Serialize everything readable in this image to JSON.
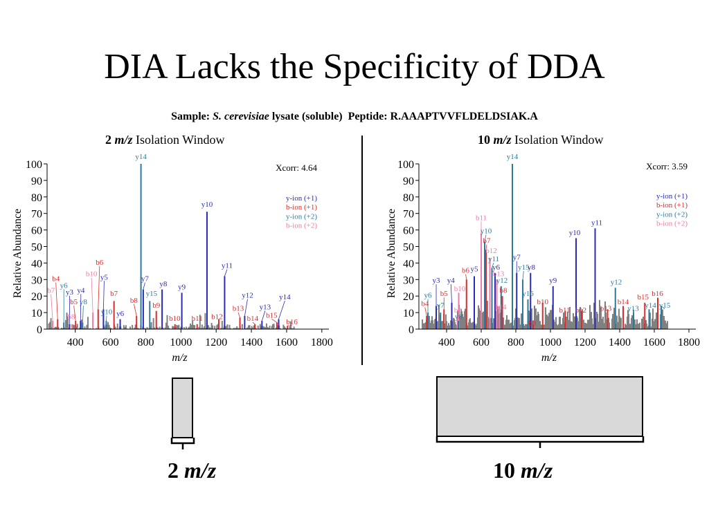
{
  "slide": {
    "title": "DIA Lacks the Specificity of DDA",
    "sample_label": "Sample:",
    "sample_species": "S. cerevisiae",
    "sample_rest": "lysate (soluble)",
    "peptide_label": "Peptide:",
    "peptide_seq": "R.AAAPTVVFLDELDSIAK.A"
  },
  "windows": [
    {
      "number": "2",
      "unit": "m/z",
      "suffix": "Isolation Window",
      "label_number": "2",
      "label_unit": "m/z"
    },
    {
      "number": "10",
      "unit": "m/z",
      "suffix": "Isolation Window",
      "label_number": "10",
      "label_unit": "m/z"
    }
  ],
  "colors": {
    "y1": "#2a2ab8",
    "b1": "#e02a2a",
    "y2": "#2a7aa0",
    "b2": "#ee7aa8",
    "noise": "#808080",
    "box_fill": "#d9d9d9"
  },
  "legend": [
    "y-ion (+1)",
    "b-ion (+1)",
    "y-ion (+2)",
    "b-ion (+2)"
  ],
  "chart_data": [
    {
      "type": "bar",
      "title": "2 m/z Isolation Window",
      "xlabel": "m/z",
      "ylabel": "Relative Abundance",
      "xlim": [
        240,
        1840
      ],
      "ylim": [
        0,
        100
      ],
      "xticks": [
        400,
        600,
        800,
        1000,
        1200,
        1400,
        1600,
        1800
      ],
      "yticks": [
        0,
        10,
        20,
        30,
        40,
        50,
        60,
        70,
        80,
        90,
        100
      ],
      "annotation": "Xcorr: 4.64",
      "legend_entries": [
        "y-ion (+1)",
        "b-ion (+1)",
        "y-ion (+2)",
        "b-ion (+2)"
      ],
      "peaks": [
        {
          "label": "y14",
          "ion": "y2",
          "mz": 773,
          "height": 100,
          "lx": 773,
          "ly": 103
        },
        {
          "label": "y10",
          "ion": "y1",
          "mz": 1148,
          "height": 71,
          "lx": 1148,
          "ly": 74
        },
        {
          "label": "y11",
          "ion": "y1",
          "mz": 1248,
          "height": 32,
          "lx": 1262,
          "ly": 37
        },
        {
          "label": "b4",
          "ion": "b1",
          "mz": 300,
          "height": 6,
          "lx": 290,
          "ly": 29
        },
        {
          "label": "b7",
          "ion": "b2",
          "mz": 272,
          "height": 5,
          "lx": 262,
          "ly": 22
        },
        {
          "label": "y6",
          "ion": "y2",
          "mz": 335,
          "height": 4,
          "lx": 335,
          "ly": 25
        },
        {
          "label": "y3",
          "ion": "y1",
          "mz": 368,
          "height": 3,
          "lx": 368,
          "ly": 21
        },
        {
          "label": "b5",
          "ion": "b1",
          "mz": 402,
          "height": 5,
          "lx": 392,
          "ly": 15
        },
        {
          "label": "y4",
          "ion": "y1",
          "mz": 430,
          "height": 5,
          "lx": 432,
          "ly": 22
        },
        {
          "label": "y8",
          "ion": "y2",
          "mz": 442,
          "height": 4,
          "lx": 446,
          "ly": 15
        },
        {
          "label": "b8",
          "ion": "b2",
          "mz": 382,
          "height": 3,
          "lx": 377,
          "ly": 6
        },
        {
          "label": "b10",
          "ion": "b2",
          "mz": 500,
          "height": 10,
          "lx": 492,
          "ly": 32
        },
        {
          "label": "b6",
          "ion": "b1",
          "mz": 530,
          "height": 12,
          "lx": 538,
          "ly": 39
        },
        {
          "label": "y5",
          "ion": "y1",
          "mz": 560,
          "height": 12,
          "lx": 564,
          "ly": 30
        },
        {
          "label": "y10",
          "ion": "y2",
          "mz": 576,
          "height": 5,
          "lx": 578,
          "ly": 9
        },
        {
          "label": "b7",
          "ion": "b1",
          "mz": 620,
          "height": 17,
          "lx": 620,
          "ly": 20
        },
        {
          "label": "y6",
          "ion": "y1",
          "mz": 655,
          "height": 6,
          "lx": 655,
          "ly": 8
        },
        {
          "label": "b8",
          "ion": "b1",
          "mz": 748,
          "height": 8,
          "lx": 733,
          "ly": 16
        },
        {
          "label": "y7",
          "ion": "y1",
          "mz": 786,
          "height": 24,
          "lx": 796,
          "ly": 29
        },
        {
          "label": "y15",
          "ion": "y2",
          "mz": 823,
          "height": 17,
          "lx": 833,
          "ly": 20
        },
        {
          "label": "b9",
          "ion": "b1",
          "mz": 860,
          "height": 11,
          "lx": 860,
          "ly": 13
        },
        {
          "label": "y8",
          "ion": "y1",
          "mz": 893,
          "height": 24,
          "lx": 900,
          "ly": 26
        },
        {
          "label": "y9",
          "ion": "y1",
          "mz": 1005,
          "height": 22,
          "lx": 1005,
          "ly": 24
        },
        {
          "label": "b10",
          "ion": "b1",
          "mz": 966,
          "height": 3,
          "lx": 965,
          "ly": 5
        },
        {
          "label": "b11",
          "ion": "b1",
          "mz": 1092,
          "height": 3,
          "lx": 1092,
          "ly": 5
        },
        {
          "label": "b12",
          "ion": "b1",
          "mz": 1215,
          "height": 6,
          "lx": 1205,
          "ly": 6
        },
        {
          "label": "b13",
          "ion": "b1",
          "mz": 1335,
          "height": 7,
          "lx": 1325,
          "ly": 11
        },
        {
          "label": "y12",
          "ion": "y1",
          "mz": 1362,
          "height": 8,
          "lx": 1378,
          "ly": 19
        },
        {
          "label": "b14",
          "ion": "b1",
          "mz": 1420,
          "height": 3,
          "lx": 1407,
          "ly": 5
        },
        {
          "label": "y13",
          "ion": "y1",
          "mz": 1460,
          "height": 5,
          "lx": 1478,
          "ly": 12
        },
        {
          "label": "b15",
          "ion": "b1",
          "mz": 1545,
          "height": 4,
          "lx": 1515,
          "ly": 7
        },
        {
          "label": "y14",
          "ion": "y1",
          "mz": 1555,
          "height": 6,
          "lx": 1590,
          "ly": 18
        },
        {
          "label": "b16",
          "ion": "b1",
          "mz": 1605,
          "height": 2,
          "lx": 1630,
          "ly": 3
        }
      ]
    },
    {
      "type": "bar",
      "title": "10 m/z Isolation Window",
      "xlabel": "m/z",
      "ylabel": "Relative Abundance",
      "xlim": [
        240,
        1840
      ],
      "ylim": [
        0,
        100
      ],
      "xticks": [
        400,
        600,
        800,
        1000,
        1200,
        1400,
        1600,
        1800
      ],
      "yticks": [
        0,
        10,
        20,
        30,
        40,
        50,
        60,
        70,
        80,
        90,
        100
      ],
      "annotation": "Xcorr: 3.59",
      "legend_entries": [
        "y-ion (+1)",
        "b-ion (+1)",
        "y-ion (+2)",
        "b-ion (+2)"
      ],
      "peaks": [
        {
          "label": "y14",
          "ion": "y2",
          "mz": 780,
          "height": 100,
          "lx": 780,
          "ly": 103
        },
        {
          "label": "b11",
          "ion": "b2",
          "mz": 600,
          "height": 58,
          "lx": 600,
          "ly": 66
        },
        {
          "label": "y10",
          "ion": "y2",
          "mz": 620,
          "height": 53,
          "lx": 628,
          "ly": 58
        },
        {
          "label": "b7",
          "ion": "b1",
          "mz": 628,
          "height": 48,
          "lx": 632,
          "ly": 52
        },
        {
          "label": "b12",
          "ion": "b2",
          "mz": 650,
          "height": 43,
          "lx": 658,
          "ly": 46
        },
        {
          "label": "y11",
          "ion": "y2",
          "mz": 662,
          "height": 37,
          "lx": 672,
          "ly": 41
        },
        {
          "label": "y6",
          "ion": "y1",
          "mz": 680,
          "height": 34,
          "lx": 686,
          "ly": 36
        },
        {
          "label": "b13",
          "ion": "b2",
          "mz": 690,
          "height": 30,
          "lx": 700,
          "ly": 32
        },
        {
          "label": "y12",
          "ion": "y2",
          "mz": 715,
          "height": 26,
          "lx": 720,
          "ly": 28
        },
        {
          "label": "b8",
          "ion": "b1",
          "mz": 722,
          "height": 20,
          "lx": 728,
          "ly": 22
        },
        {
          "label": "b14",
          "ion": "b2",
          "mz": 705,
          "height": 14,
          "lx": 713,
          "ly": 12
        },
        {
          "label": "y5",
          "ion": "y1",
          "mz": 560,
          "height": 32,
          "lx": 560,
          "ly": 35
        },
        {
          "label": "b6",
          "ion": "b1",
          "mz": 515,
          "height": 30,
          "lx": 510,
          "ly": 34
        },
        {
          "label": "b10",
          "ion": "b2",
          "mz": 470,
          "height": 22,
          "lx": 476,
          "ly": 23
        },
        {
          "label": "y4",
          "ion": "y1",
          "mz": 430,
          "height": 16,
          "lx": 425,
          "ly": 28
        },
        {
          "label": "y3",
          "ion": "y1",
          "mz": 340,
          "height": 14,
          "lx": 340,
          "ly": 28
        },
        {
          "label": "b5",
          "ion": "b1",
          "mz": 385,
          "height": 12,
          "lx": 385,
          "ly": 20
        },
        {
          "label": "y6",
          "ion": "y2",
          "mz": 292,
          "height": 10,
          "lx": 292,
          "ly": 19
        },
        {
          "label": "y7",
          "ion": "y2",
          "mz": 365,
          "height": 10,
          "lx": 365,
          "ly": 13
        },
        {
          "label": "b4",
          "ion": "b1",
          "mz": 285,
          "height": 8,
          "lx": 275,
          "ly": 14
        },
        {
          "label": "b9",
          "ion": "b2",
          "mz": 462,
          "height": 7,
          "lx": 465,
          "ly": 10
        },
        {
          "label": "y8",
          "ion": "y2",
          "mz": 468,
          "height": 5,
          "lx": 470,
          "ly": 6
        },
        {
          "label": "y7",
          "ion": "y1",
          "mz": 805,
          "height": 34,
          "lx": 805,
          "ly": 42
        },
        {
          "label": "y15",
          "ion": "y2",
          "mz": 840,
          "height": 30,
          "lx": 845,
          "ly": 36
        },
        {
          "label": "y8",
          "ion": "y1",
          "mz": 885,
          "height": 34,
          "lx": 890,
          "ly": 36
        },
        {
          "label": "y16",
          "ion": "y2",
          "mz": 870,
          "height": 18,
          "lx": 870,
          "ly": 20
        },
        {
          "label": "b10",
          "ion": "b1",
          "mz": 955,
          "height": 16,
          "lx": 955,
          "ly": 15
        },
        {
          "label": "y9",
          "ion": "y1",
          "mz": 1015,
          "height": 26,
          "lx": 1015,
          "ly": 28
        },
        {
          "label": "b9",
          "ion": "b1",
          "mz": 900,
          "height": 3,
          "lx": 895,
          "ly": 2
        },
        {
          "label": "b11",
          "ion": "b1",
          "mz": 1085,
          "height": 11,
          "lx": 1082,
          "ly": 10
        },
        {
          "label": "y10",
          "ion": "y1",
          "mz": 1148,
          "height": 55,
          "lx": 1140,
          "ly": 57
        },
        {
          "label": "b12",
          "ion": "b1",
          "mz": 1180,
          "height": 11,
          "lx": 1175,
          "ly": 10
        },
        {
          "label": "y11",
          "ion": "y1",
          "mz": 1258,
          "height": 61,
          "lx": 1268,
          "ly": 63
        },
        {
          "label": "b13",
          "ion": "b1",
          "mz": 1330,
          "height": 12,
          "lx": 1320,
          "ly": 11
        },
        {
          "label": "y12",
          "ion": "y2",
          "mz": 1375,
          "height": 25,
          "lx": 1380,
          "ly": 27
        },
        {
          "label": "b14",
          "ion": "b1",
          "mz": 1420,
          "height": 14,
          "lx": 1420,
          "ly": 15
        },
        {
          "label": "y13",
          "ion": "y2",
          "mz": 1480,
          "height": 10,
          "lx": 1478,
          "ly": 11
        },
        {
          "label": "b15",
          "ion": "b1",
          "mz": 1545,
          "height": 16,
          "lx": 1535,
          "ly": 18
        },
        {
          "label": "y14",
          "ion": "y2",
          "mz": 1570,
          "height": 12,
          "lx": 1578,
          "ly": 13
        },
        {
          "label": "b16",
          "ion": "b1",
          "mz": 1620,
          "height": 19,
          "lx": 1618,
          "ly": 20
        },
        {
          "label": "y15",
          "ion": "y2",
          "mz": 1640,
          "height": 14,
          "lx": 1660,
          "ly": 13
        }
      ]
    }
  ]
}
